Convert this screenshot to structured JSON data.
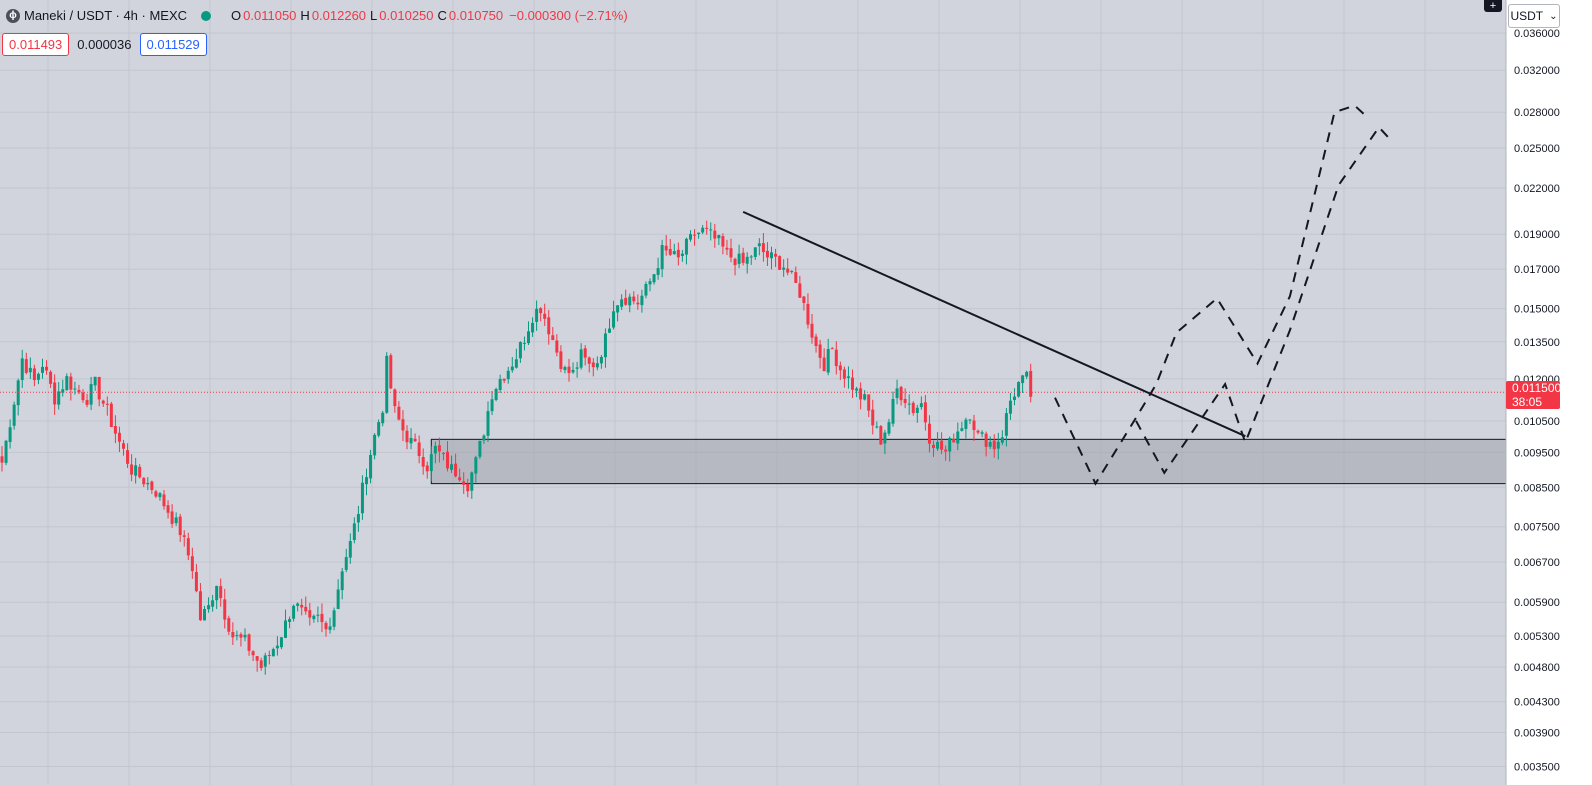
{
  "header": {
    "title": "Maneki / USDT · 4h · MEXC",
    "ohlc": [
      {
        "label": "O",
        "value": "0.011050"
      },
      {
        "label": "H",
        "value": "0.012260"
      },
      {
        "label": "L",
        "value": "0.010250"
      },
      {
        "label": "C",
        "value": "0.010750"
      }
    ],
    "change": "−0.000300 (−2.71%)",
    "sell_price": "0.011493",
    "spread": "0.000036",
    "buy_price": "0.011529"
  },
  "toolbar": {
    "currency": "USDT",
    "plus_icon": "plus-icon",
    "chevron_icon": "chevron-down-icon"
  },
  "last_price": {
    "value": "0.011500",
    "countdown": "38:05"
  },
  "colors": {
    "up": "#089981",
    "down": "#f23645",
    "background": "#d1d4dc",
    "grid": "#c3c6ce",
    "drawing": "#131722"
  },
  "chart_data": {
    "type": "candlestick",
    "y_scale": "log",
    "ylim": [
      0.0033,
      0.04
    ],
    "price_ticks": [
      "0.036000",
      "0.032000",
      "0.028000",
      "0.025000",
      "0.022000",
      "0.019000",
      "0.017000",
      "0.015000",
      "0.013500",
      "0.012000",
      "0.010500",
      "0.009500",
      "0.008500",
      "0.007500",
      "0.006700",
      "0.005900",
      "0.005300",
      "0.004800",
      "0.004300",
      "0.003900",
      "0.003500"
    ],
    "price_tick_values": [
      0.036,
      0.032,
      0.028,
      0.025,
      0.022,
      0.019,
      0.017,
      0.015,
      0.0135,
      0.012,
      0.0105,
      0.0095,
      0.0085,
      0.0075,
      0.0067,
      0.0059,
      0.0053,
      0.0048,
      0.0043,
      0.0039,
      0.0035
    ],
    "close_anchors": [
      [
        0,
        0.0092
      ],
      [
        3,
        0.0112
      ],
      [
        5,
        0.0128
      ],
      [
        8,
        0.0119
      ],
      [
        10,
        0.0126
      ],
      [
        13,
        0.0113
      ],
      [
        16,
        0.012
      ],
      [
        18,
        0.0116
      ],
      [
        21,
        0.0113
      ],
      [
        23,
        0.0118
      ],
      [
        26,
        0.0108
      ],
      [
        29,
        0.0098
      ],
      [
        32,
        0.009
      ],
      [
        35,
        0.0087
      ],
      [
        38,
        0.0084
      ],
      [
        41,
        0.0079
      ],
      [
        44,
        0.0074
      ],
      [
        47,
        0.0066
      ],
      [
        49,
        0.0056
      ],
      [
        51,
        0.0058
      ],
      [
        53,
        0.0063
      ],
      [
        55,
        0.0057
      ],
      [
        57,
        0.0053
      ],
      [
        60,
        0.0052
      ],
      [
        62,
        0.005
      ],
      [
        64,
        0.0048
      ],
      [
        66,
        0.005
      ],
      [
        68,
        0.0052
      ],
      [
        70,
        0.0055
      ],
      [
        72,
        0.0059
      ],
      [
        74,
        0.0057
      ],
      [
        76,
        0.0055
      ],
      [
        78,
        0.0056
      ],
      [
        80,
        0.0054
      ],
      [
        82,
        0.0058
      ],
      [
        84,
        0.0066
      ],
      [
        86,
        0.0071
      ],
      [
        88,
        0.0079
      ],
      [
        90,
        0.009
      ],
      [
        92,
        0.01
      ],
      [
        94,
        0.011
      ],
      [
        95,
        0.0126
      ],
      [
        97,
        0.0108
      ],
      [
        99,
        0.0102
      ],
      [
        101,
        0.0098
      ],
      [
        103,
        0.0095
      ],
      [
        105,
        0.0091
      ],
      [
        107,
        0.0096
      ],
      [
        109,
        0.0093
      ],
      [
        111,
        0.009
      ],
      [
        113,
        0.0089
      ],
      [
        115,
        0.0086
      ],
      [
        117,
        0.0092
      ],
      [
        119,
        0.0102
      ],
      [
        121,
        0.0115
      ],
      [
        123,
        0.012
      ],
      [
        125,
        0.0124
      ],
      [
        127,
        0.0129
      ],
      [
        129,
        0.0137
      ],
      [
        131,
        0.0147
      ],
      [
        133,
        0.0151
      ],
      [
        135,
        0.0141
      ],
      [
        137,
        0.0131
      ],
      [
        139,
        0.0123
      ],
      [
        141,
        0.0122
      ],
      [
        143,
        0.0129
      ],
      [
        145,
        0.0125
      ],
      [
        147,
        0.0127
      ],
      [
        149,
        0.0136
      ],
      [
        151,
        0.0152
      ],
      [
        153,
        0.0156
      ],
      [
        155,
        0.0155
      ],
      [
        157,
        0.0153
      ],
      [
        159,
        0.0159
      ],
      [
        161,
        0.0168
      ],
      [
        163,
        0.018
      ],
      [
        165,
        0.0178
      ],
      [
        167,
        0.0175
      ],
      [
        169,
        0.0183
      ],
      [
        171,
        0.019
      ],
      [
        173,
        0.0192
      ],
      [
        175,
        0.0189
      ],
      [
        177,
        0.0185
      ],
      [
        179,
        0.0178
      ],
      [
        181,
        0.0176
      ],
      [
        183,
        0.0173
      ],
      [
        185,
        0.0178
      ],
      [
        187,
        0.0182
      ],
      [
        189,
        0.0177
      ],
      [
        191,
        0.0175
      ],
      [
        193,
        0.0172
      ],
      [
        195,
        0.0165
      ],
      [
        197,
        0.0158
      ],
      [
        199,
        0.0145
      ],
      [
        201,
        0.0133
      ],
      [
        203,
        0.0126
      ],
      [
        205,
        0.0132
      ],
      [
        207,
        0.0124
      ],
      [
        209,
        0.012
      ],
      [
        211,
        0.0115
      ],
      [
        213,
        0.0112
      ],
      [
        215,
        0.0104
      ],
      [
        217,
        0.0099
      ],
      [
        219,
        0.0105
      ],
      [
        221,
        0.0116
      ],
      [
        223,
        0.0113
      ],
      [
        225,
        0.0109
      ],
      [
        227,
        0.0111
      ],
      [
        229,
        0.01
      ],
      [
        231,
        0.0097
      ],
      [
        233,
        0.0095
      ],
      [
        235,
        0.01
      ],
      [
        237,
        0.0104
      ],
      [
        239,
        0.0108
      ],
      [
        241,
        0.01
      ],
      [
        243,
        0.0099
      ],
      [
        245,
        0.0097
      ],
      [
        247,
        0.0101
      ],
      [
        249,
        0.0112
      ],
      [
        251,
        0.0118
      ],
      [
        253,
        0.012
      ],
      [
        254,
        0.0114
      ]
    ],
    "candle_count": 255,
    "support_zone": {
      "top": 0.0099,
      "bottom": 0.0086,
      "start_index": 106
    },
    "trendline": [
      [
        183,
        0.0204
      ],
      [
        307,
        0.01
      ]
    ],
    "projection_paths": [
      [
        [
          260,
          0.0113
        ],
        [
          270,
          0.0086
        ],
        [
          280,
          0.0106
        ],
        [
          285,
          0.0118
        ],
        [
          290,
          0.0139
        ],
        [
          300,
          0.0155
        ],
        [
          310,
          0.0126
        ],
        [
          318,
          0.0156
        ],
        [
          329,
          0.028
        ],
        [
          334,
          0.0286
        ],
        [
          337,
          0.0276
        ]
      ],
      [
        [
          280,
          0.0105
        ],
        [
          287,
          0.0089
        ],
        [
          302,
          0.0118
        ],
        [
          307,
          0.0098
        ],
        [
          318,
          0.014
        ],
        [
          330,
          0.0222
        ],
        [
          340,
          0.0267
        ],
        [
          343,
          0.0256
        ]
      ]
    ]
  }
}
